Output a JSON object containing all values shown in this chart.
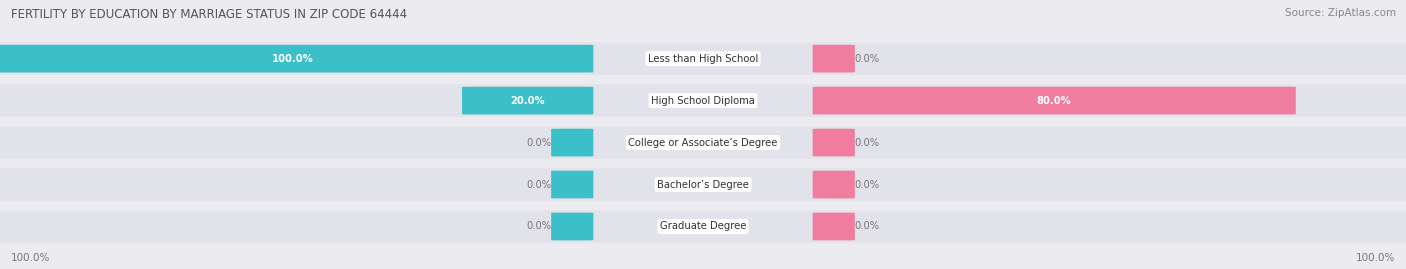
{
  "title": "FERTILITY BY EDUCATION BY MARRIAGE STATUS IN ZIP CODE 64444",
  "source": "Source: ZipAtlas.com",
  "categories": [
    "Less than High School",
    "High School Diploma",
    "College or Associate’s Degree",
    "Bachelor’s Degree",
    "Graduate Degree"
  ],
  "married_pct": [
    100.0,
    20.0,
    0.0,
    0.0,
    0.0
  ],
  "unmarried_pct": [
    0.0,
    80.0,
    0.0,
    0.0,
    0.0
  ],
  "married_color": "#3BBFC9",
  "unmarried_color": "#F07CA0",
  "bg_color": "#EBEBF0",
  "row_bg_color": "#E2E2EA",
  "title_color": "#555555",
  "label_color": "#777777",
  "source_color": "#888888",
  "figsize": [
    14.06,
    2.69
  ],
  "dpi": 100
}
